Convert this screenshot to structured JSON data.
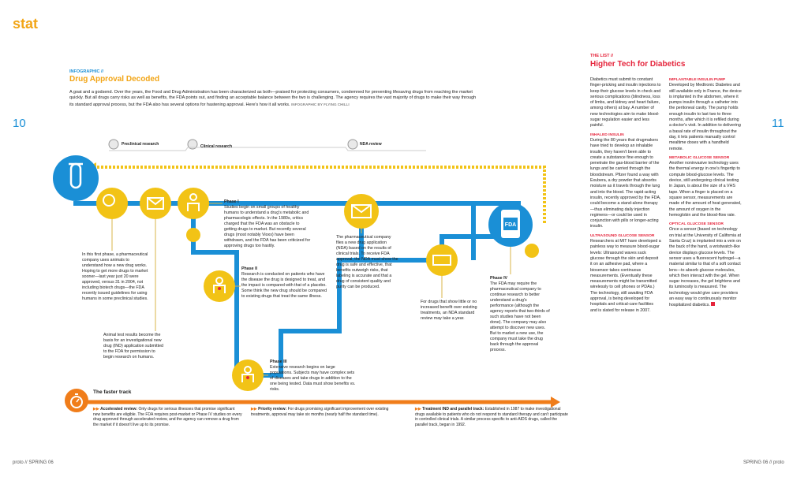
{
  "section": "stat",
  "page_left": "10",
  "page_right": "11",
  "footer_left": "proto // SPRING 06",
  "footer_right": "SPRING 06 // proto",
  "infographic": {
    "kicker": "INFOGRAPHIC //",
    "title": "Drug Approval Decoded",
    "intro": "A goat and a godsend. Over the years, the Food and Drug Administration has been characterized as both—praised for protecting consumers, condemned for preventing lifesaving drugs from reaching the market quickly. But all drugs carry risks as well as benefits, the FDA points out, and finding an acceptable balance between the two is challenging. The agency requires the vast majority of drugs to make their way through its standard approval process, but the FDA also has several options for hastening approval. Here's how it all works.",
    "credit": "INFOGRAPHIC BY FLYING CHILLI",
    "stages": [
      "Preclinical research",
      "Clinical research",
      "NDA review"
    ],
    "fda_label": "FDA",
    "preclinical": "In this first phase, a pharmaceutical company uses animals to understand how a new drug works. Hoping to get more drugs to market sooner—last year just 20 were approved, versus 31 in 2004, not including biotech drugs—the FDA recently issued guidelines for using humans in some preclinical studies.",
    "ind": "Animal test results become the basis for an investigational new drug (IND) application submitted to the FDA for permission to begin research on humans.",
    "phase1_title": "Phase I",
    "phase1": "Studies begin on small groups of healthy humans to understand a drug's metabolic and pharmacologic effects. In the 1980s, critics charged that the FDA was an obstacle to getting drugs to market. But recently several drugs (most notably Vioxx) have been withdrawn, and the FDA has been criticized for approving drugs too hastily.",
    "phase2_title": "Phase II",
    "phase2": "Research is conducted on patients who have the disease the drug is designed to treat, and the impact is compared with that of a placebo. Some think the new drug should be compared to existing drugs that treat the same illness.",
    "phase3_title": "Phase III",
    "phase3": "Extensive research begins on large populations. Subjects may have complex sets of diseases and take drugs in addition to the one being tested. Data must show benefits vs. risks.",
    "nda": "The pharmaceutical company files a new drug application (NDA) based on the results of clinical trials. To receive FDA approval, the NDA must show the drug is safe and effective, that benefits outweigh risks, that labeling is accurate and that a drug of consistent quality and purity can be produced.",
    "standard": "For drugs that show little or no increased benefit over existing treatments, an NDA standard review may take a year.",
    "phase4_title": "Phase IV",
    "phase4": "The FDA may require the pharmaceutical company to continue research to better understand a drug's performance (although the agency reports that two-thirds of such studies have not been done). The company may also attempt to discover new uses. But to market a new use, the company must take the drug back through the approval process.",
    "faster_title": "The faster track",
    "faster": [
      {
        "head": "Accelerated review:",
        "text": "Only drugs for serious illnesses that promise significant new benefits are eligible. The FDA requires post-market or Phase IV studies on every drug approved through accelerated review, and the agency can remove a drug from the market if it doesn't live up to its promise."
      },
      {
        "head": "Priority review:",
        "text": "For drugs promising significant improvement over existing treatments, approval may take six months (nearly half the standard time)."
      },
      {
        "head": "Treatment IND and parallel track:",
        "text": "Established in 1987 to make investigational drugs available to patients who do not respond to standard therapy and can't participate in controlled clinical trials. A similar process specific to anti-AIDS drugs, called the parallel track, began in 1992."
      }
    ]
  },
  "list": {
    "kicker": "THE LIST //",
    "title": "Higher Tech for Diabetics",
    "col1": [
      {
        "head": "",
        "text": "Diabetics must submit to constant finger-pricking and insulin injections to keep their glucose levels in check and serious complications (blindness, loss of limbs, and kidney and heart failure, among others) at bay. A number of new technologies aim to make blood-sugar regulation easier and less painful."
      },
      {
        "head": "INHALED INSULIN",
        "text": "During the 80 years that drugmakers have tried to develop an inhalable insulin, they haven't been able to create a substance fine enough to penetrate the gas-blood barrier of the lungs and be carried through the bloodstream. Pfizer found a way with Exubera, a dry powder that absorbs moisture as it travels through the lung and into the blood. The rapid-acting insulin, recently approved by the FDA, could become a stand-alone therapy—thus eliminating daily injection regimens—or could be used in conjunction with pills or longer-acting insulin."
      },
      {
        "head": "ULTRASOUND GLUCOSE SENSOR",
        "text": "Researchers at MIT have developed a painless way to measure blood-sugar levels: Ultrasound waves suck glucose through the skin and deposit it on an adhesive pad, where a biosensor takes continuous measurements. (Eventually these measurements might be transmitted wirelessly to cell phones or PDAs.) The technology, still awaiting FDA approval, is being developed for hospitals and critical-care facilities and is slated for release in 2007."
      }
    ],
    "col2": [
      {
        "head": "IMPLANTABLE INSULIN PUMP",
        "text": "Developed by Medtronic Diabetes and still available only in France, the device is implanted in the abdomen, where it pumps insulin through a catheter into the peritoneal cavity. The pump holds enough insulin to last two to three months, after which it is refilled during a doctor's visit. In addition to delivering a basal rate of insulin throughout the day, it lets patients manually control mealtime doses with a handheld remote."
      },
      {
        "head": "METABOLIC GLUCOSE SENSOR",
        "text": "Another noninvasive technology uses the thermal energy in one's fingertip to compute blood-glucose levels. The device, still undergoing clinical testing in Japan, is about the size of a VHS tape. When a finger is placed on a square sensor, measurements are made of the amount of heat generated, the amount of oxygen in the hemoglobin and the blood-flow rate."
      },
      {
        "head": "OPTICAL GLUCOSE SENSOR",
        "text": "Once a sensor (based on technology on trial at the University of California at Santa Cruz) is implanted into a vein on the back of the hand, a wristwatch-like device displays glucose levels. The sensor uses a fluorescent hydrogel—a material similar to that of a soft contact lens—to absorb glucose molecules, which then interact with the gel. When sugar increases, the gel brightens and its luminosity is measured. The technology would give care providers an easy way to continuously monitor hospitalized diabetics."
      }
    ]
  },
  "colors": {
    "blue": "#1a8fd6",
    "gold": "#f2c316",
    "orange": "#f07d1a",
    "red": "#e5243b",
    "beige": "#efe3b5"
  }
}
